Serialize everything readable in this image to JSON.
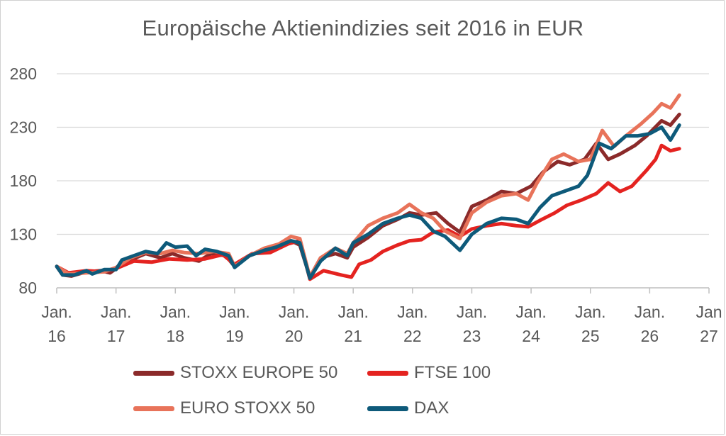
{
  "chart_data": {
    "type": "line",
    "title": "Europäische Aktienindizies seit 2016 in EUR",
    "xlabel": "",
    "ylabel": "",
    "ylim": [
      80,
      280
    ],
    "yticks": [
      80,
      130,
      180,
      230,
      280
    ],
    "xlim": [
      2016.0,
      2027.0
    ],
    "x_tick_labels": [
      {
        "line1": "Jan.",
        "line2": "16"
      },
      {
        "line1": "Jan.",
        "line2": "17"
      },
      {
        "line1": "Jan.",
        "line2": "18"
      },
      {
        "line1": "Jan.",
        "line2": "19"
      },
      {
        "line1": "Jan.",
        "line2": "20"
      },
      {
        "line1": "Jan.",
        "line2": "21"
      },
      {
        "line1": "Jan.",
        "line2": "22"
      },
      {
        "line1": "Jan.",
        "line2": "23"
      },
      {
        "line1": "Jan.",
        "line2": "24"
      },
      {
        "line1": "Jan.",
        "line2": "25"
      },
      {
        "line1": "Jan.",
        "line2": "26"
      },
      {
        "line1": "Jan",
        "line2": "27"
      }
    ],
    "grid": "horizontal",
    "legend_position": "bottom",
    "series": [
      {
        "name": "STOXX EUROPE 50",
        "color": "#8b2a2a",
        "points": [
          [
            2016.0,
            100
          ],
          [
            2016.1,
            92
          ],
          [
            2016.25,
            91
          ],
          [
            2016.5,
            95
          ],
          [
            2016.75,
            96
          ],
          [
            2016.9,
            94
          ],
          [
            2017.0,
            98
          ],
          [
            2017.25,
            106
          ],
          [
            2017.5,
            112
          ],
          [
            2017.75,
            108
          ],
          [
            2017.95,
            112
          ],
          [
            2018.15,
            108
          ],
          [
            2018.4,
            105
          ],
          [
            2018.6,
            112
          ],
          [
            2018.85,
            110
          ],
          [
            2019.0,
            100
          ],
          [
            2019.25,
            110
          ],
          [
            2019.5,
            115
          ],
          [
            2019.75,
            118
          ],
          [
            2019.95,
            124
          ],
          [
            2020.1,
            120
          ],
          [
            2020.27,
            90
          ],
          [
            2020.45,
            108
          ],
          [
            2020.7,
            112
          ],
          [
            2020.9,
            108
          ],
          [
            2021.0,
            118
          ],
          [
            2021.25,
            127
          ],
          [
            2021.5,
            138
          ],
          [
            2021.75,
            144
          ],
          [
            2021.95,
            150
          ],
          [
            2022.15,
            148
          ],
          [
            2022.4,
            150
          ],
          [
            2022.6,
            140
          ],
          [
            2022.8,
            132
          ],
          [
            2023.0,
            156
          ],
          [
            2023.25,
            162
          ],
          [
            2023.5,
            170
          ],
          [
            2023.75,
            168
          ],
          [
            2024.0,
            175
          ],
          [
            2024.2,
            188
          ],
          [
            2024.45,
            198
          ],
          [
            2024.65,
            195
          ],
          [
            2024.9,
            200
          ],
          [
            2025.1,
            215
          ],
          [
            2025.3,
            200
          ],
          [
            2025.5,
            205
          ],
          [
            2025.75,
            213
          ],
          [
            2025.95,
            222
          ],
          [
            2026.2,
            236
          ],
          [
            2026.35,
            232
          ],
          [
            2026.5,
            242
          ]
        ]
      },
      {
        "name": "FTSE 100",
        "color": "#e42320",
        "points": [
          [
            2016.0,
            100
          ],
          [
            2016.2,
            94
          ],
          [
            2016.5,
            96
          ],
          [
            2016.8,
            95
          ],
          [
            2017.0,
            98
          ],
          [
            2017.3,
            105
          ],
          [
            2017.6,
            104
          ],
          [
            2017.9,
            107
          ],
          [
            2018.2,
            106
          ],
          [
            2018.5,
            107
          ],
          [
            2018.8,
            111
          ],
          [
            2019.0,
            102
          ],
          [
            2019.3,
            112
          ],
          [
            2019.6,
            113
          ],
          [
            2019.9,
            121
          ],
          [
            2020.1,
            124
          ],
          [
            2020.27,
            88
          ],
          [
            2020.5,
            96
          ],
          [
            2020.8,
            92
          ],
          [
            2020.97,
            90
          ],
          [
            2021.1,
            102
          ],
          [
            2021.3,
            106
          ],
          [
            2021.5,
            114
          ],
          [
            2021.75,
            120
          ],
          [
            2021.95,
            124
          ],
          [
            2022.15,
            125
          ],
          [
            2022.35,
            132
          ],
          [
            2022.6,
            134
          ],
          [
            2022.8,
            128
          ],
          [
            2023.0,
            135
          ],
          [
            2023.25,
            138
          ],
          [
            2023.5,
            140
          ],
          [
            2023.75,
            138
          ],
          [
            2023.95,
            137
          ],
          [
            2024.15,
            143
          ],
          [
            2024.4,
            150
          ],
          [
            2024.6,
            157
          ],
          [
            2024.85,
            162
          ],
          [
            2025.1,
            168
          ],
          [
            2025.3,
            178
          ],
          [
            2025.5,
            170
          ],
          [
            2025.7,
            175
          ],
          [
            2025.95,
            190
          ],
          [
            2026.1,
            200
          ],
          [
            2026.2,
            213
          ],
          [
            2026.35,
            208
          ],
          [
            2026.5,
            210
          ]
        ]
      },
      {
        "name": "EURO STOXX 50",
        "color": "#e8735a",
        "points": [
          [
            2016.0,
            100
          ],
          [
            2016.2,
            93
          ],
          [
            2016.5,
            94
          ],
          [
            2016.8,
            95
          ],
          [
            2017.0,
            99
          ],
          [
            2017.25,
            108
          ],
          [
            2017.5,
            113
          ],
          [
            2017.75,
            112
          ],
          [
            2017.95,
            115
          ],
          [
            2018.15,
            113
          ],
          [
            2018.4,
            112
          ],
          [
            2018.65,
            114
          ],
          [
            2018.9,
            112
          ],
          [
            2019.0,
            100
          ],
          [
            2019.25,
            110
          ],
          [
            2019.5,
            117
          ],
          [
            2019.75,
            121
          ],
          [
            2019.95,
            128
          ],
          [
            2020.1,
            126
          ],
          [
            2020.27,
            90
          ],
          [
            2020.45,
            108
          ],
          [
            2020.7,
            117
          ],
          [
            2020.9,
            112
          ],
          [
            2021.0,
            122
          ],
          [
            2021.25,
            138
          ],
          [
            2021.5,
            145
          ],
          [
            2021.75,
            150
          ],
          [
            2021.95,
            158
          ],
          [
            2022.15,
            150
          ],
          [
            2022.35,
            145
          ],
          [
            2022.55,
            133
          ],
          [
            2022.8,
            126
          ],
          [
            2023.0,
            150
          ],
          [
            2023.25,
            160
          ],
          [
            2023.5,
            166
          ],
          [
            2023.75,
            168
          ],
          [
            2023.95,
            162
          ],
          [
            2024.1,
            178
          ],
          [
            2024.35,
            200
          ],
          [
            2024.55,
            205
          ],
          [
            2024.8,
            198
          ],
          [
            2025.0,
            200
          ],
          [
            2025.2,
            227
          ],
          [
            2025.4,
            212
          ],
          [
            2025.6,
            222
          ],
          [
            2025.85,
            233
          ],
          [
            2026.05,
            243
          ],
          [
            2026.2,
            252
          ],
          [
            2026.35,
            248
          ],
          [
            2026.5,
            260
          ]
        ]
      },
      {
        "name": "DAX",
        "color": "#0e5a7a",
        "points": [
          [
            2016.0,
            100
          ],
          [
            2016.1,
            92
          ],
          [
            2016.3,
            92
          ],
          [
            2016.5,
            96
          ],
          [
            2016.6,
            93
          ],
          [
            2016.8,
            97
          ],
          [
            2017.0,
            97
          ],
          [
            2017.1,
            106
          ],
          [
            2017.3,
            110
          ],
          [
            2017.5,
            114
          ],
          [
            2017.7,
            112
          ],
          [
            2017.85,
            122
          ],
          [
            2018.0,
            118
          ],
          [
            2018.2,
            119
          ],
          [
            2018.35,
            110
          ],
          [
            2018.5,
            116
          ],
          [
            2018.7,
            114
          ],
          [
            2018.9,
            110
          ],
          [
            2019.0,
            99
          ],
          [
            2019.25,
            110
          ],
          [
            2019.5,
            115
          ],
          [
            2019.7,
            118
          ],
          [
            2019.95,
            124
          ],
          [
            2020.1,
            122
          ],
          [
            2020.27,
            89
          ],
          [
            2020.45,
            105
          ],
          [
            2020.7,
            117
          ],
          [
            2020.9,
            110
          ],
          [
            2021.0,
            122
          ],
          [
            2021.25,
            130
          ],
          [
            2021.5,
            140
          ],
          [
            2021.75,
            145
          ],
          [
            2021.95,
            148
          ],
          [
            2022.15,
            145
          ],
          [
            2022.35,
            133
          ],
          [
            2022.55,
            128
          ],
          [
            2022.8,
            115
          ],
          [
            2023.0,
            130
          ],
          [
            2023.25,
            140
          ],
          [
            2023.5,
            145
          ],
          [
            2023.75,
            144
          ],
          [
            2023.95,
            140
          ],
          [
            2024.15,
            155
          ],
          [
            2024.35,
            166
          ],
          [
            2024.55,
            170
          ],
          [
            2024.8,
            175
          ],
          [
            2024.95,
            185
          ],
          [
            2025.15,
            215
          ],
          [
            2025.35,
            210
          ],
          [
            2025.6,
            222
          ],
          [
            2025.8,
            222
          ],
          [
            2026.0,
            224
          ],
          [
            2026.2,
            230
          ],
          [
            2026.35,
            218
          ],
          [
            2026.5,
            232
          ]
        ]
      }
    ]
  }
}
